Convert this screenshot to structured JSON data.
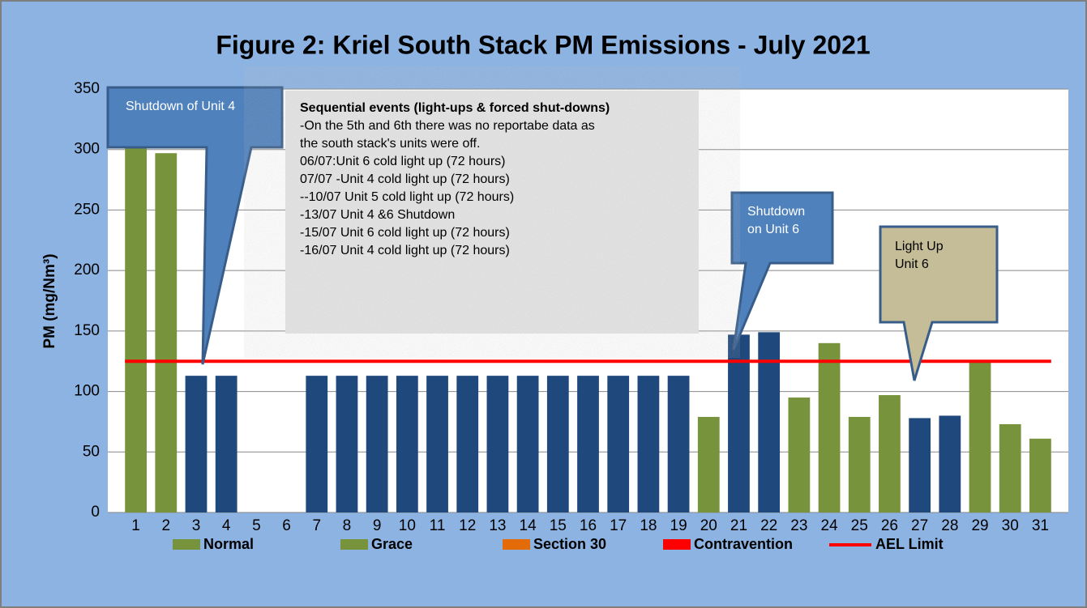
{
  "chart_data": {
    "type": "bar",
    "title": "Figure 2: Kriel South Stack PM Emissions -  July 2021",
    "y_label": "PM (mg/Nm³)",
    "categories": [
      1,
      2,
      3,
      4,
      5,
      6,
      7,
      8,
      9,
      10,
      11,
      12,
      13,
      14,
      15,
      16,
      17,
      18,
      19,
      20,
      21,
      22,
      23,
      24,
      25,
      26,
      27,
      28,
      29,
      30,
      31
    ],
    "values": [
      305,
      297,
      113,
      113,
      null,
      null,
      113,
      113,
      113,
      113,
      113,
      113,
      113,
      113,
      113,
      113,
      113,
      113,
      113,
      79,
      147,
      149,
      95,
      140,
      79,
      97,
      78,
      80,
      125,
      73,
      61
    ],
    "colors": [
      "#77933c",
      "#77933c",
      "#1f497d",
      "#1f497d",
      "#1f497d",
      "#1f497d",
      "#1f497d",
      "#1f497d",
      "#1f497d",
      "#1f497d",
      "#1f497d",
      "#1f497d",
      "#1f497d",
      "#1f497d",
      "#1f497d",
      "#1f497d",
      "#1f497d",
      "#1f497d",
      "#1f497d",
      "#77933c",
      "#1f497d",
      "#1f497d",
      "#77933c",
      "#77933c",
      "#77933c",
      "#77933c",
      "#1f497d",
      "#1f497d",
      "#77933c",
      "#77933c",
      "#77933c"
    ],
    "ylim": [
      0,
      350
    ],
    "yticks": [
      0,
      50,
      100,
      150,
      200,
      250,
      300,
      350
    ],
    "grid": true,
    "legend": [
      {
        "name": "Normal",
        "color": "#77933c"
      },
      {
        "name": "Grace",
        "color": "#77933c"
      },
      {
        "name": "Section 30",
        "color": "#e36c09"
      },
      {
        "name": "Contravention",
        "color": "#ff0000"
      }
    ],
    "limit": {
      "name": "AEL Limit",
      "value": 125,
      "color": "#ff0000"
    },
    "annotations": [
      {
        "lines": [
          "Shutdown of Unit 4"
        ]
      },
      {
        "title": "Sequential events (light-ups & forced shut-downs)",
        "lines": [
          "-On the 5th and 6th  there was no reportabe data  as",
          "the south stack's units were off.",
          "06/07:Unit 6 cold light up  (72 hours)",
          "07/07 -Unit 4 cold light up (72 hours)",
          "--10/07 Unit 5 cold light up (72 hours)",
          "-13/07 Unit  4 &6 Shutdown",
          "-15/07 Unit 6 cold light up (72 hours)",
          "-16/07 Unit 4 cold light up (72 hours)"
        ]
      },
      {
        "lines": [
          "Shutdown",
          "on Unit 6"
        ]
      },
      {
        "lines": [
          "Light Up",
          "Unit 6"
        ]
      }
    ]
  }
}
